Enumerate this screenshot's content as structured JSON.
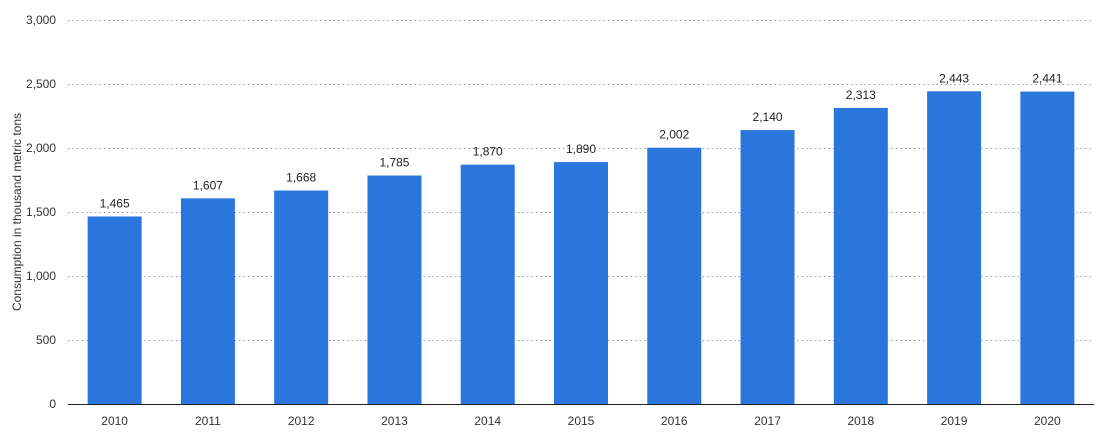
{
  "chart_data": {
    "type": "bar",
    "categories": [
      "2010",
      "2011",
      "2012",
      "2013",
      "2014",
      "2015",
      "2016",
      "2017",
      "2018",
      "2019",
      "2020"
    ],
    "values": [
      1465,
      1607,
      1668,
      1785,
      1870,
      1890,
      2002,
      2140,
      2313,
      2443,
      2441
    ],
    "value_labels": [
      "1,465",
      "1,607",
      "1,668",
      "1,785",
      "1,870",
      "1,890",
      "2,002",
      "2,140",
      "2,313",
      "2,443",
      "2,441"
    ],
    "ylabel": "Consumption in thousand metric tons",
    "xlabel": "",
    "ylim": [
      0,
      3000
    ],
    "yticks": [
      0,
      500,
      1000,
      1500,
      2000,
      2500,
      3000
    ],
    "ytick_labels": [
      "0",
      "500",
      "1,000",
      "1,500",
      "2,000",
      "2,500",
      "3,000"
    ],
    "grid": true,
    "bar_color": "#2a76dd"
  }
}
